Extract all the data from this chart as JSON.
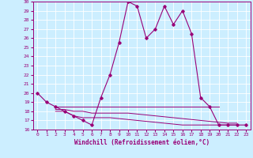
{
  "background_color": "#cceeff",
  "grid_color": "#ffffff",
  "line_color": "#990077",
  "xlabel": "Windchill (Refroidissement éolien,°C)",
  "ylim": [
    16,
    30
  ],
  "xlim": [
    -0.5,
    23.5
  ],
  "ytick_labels": [
    "16",
    "17",
    "18",
    "19",
    "20",
    "21",
    "22",
    "23",
    "24",
    "25",
    "26",
    "27",
    "28",
    "29",
    "30"
  ],
  "xtick_labels": [
    "0",
    "1",
    "2",
    "3",
    "4",
    "5",
    "6",
    "7",
    "8",
    "9",
    "10",
    "11",
    "12",
    "13",
    "14",
    "15",
    "16",
    "17",
    "18",
    "19",
    "20",
    "21",
    "22",
    "23"
  ],
  "x_main": [
    0,
    1,
    2,
    3,
    4,
    5,
    6,
    7,
    8,
    9,
    10,
    11,
    12,
    13,
    14,
    15,
    16,
    17,
    18,
    19,
    20,
    21,
    22,
    23
  ],
  "y_main": [
    20,
    19,
    18.5,
    18,
    17.5,
    17,
    16.5,
    19.5,
    22,
    25.5,
    30,
    29.5,
    26,
    27,
    29.5,
    27.5,
    29,
    26.5,
    19.5,
    18.5,
    16.5,
    16.5,
    16.5,
    16.5
  ],
  "x_flat1_start": 2,
  "y_flat1": [
    18.5,
    18.5,
    18.5,
    18.5,
    18.5,
    18.5,
    18.5,
    18.5,
    18.5,
    18.5,
    18.5,
    18.5,
    18.5,
    18.5,
    18.5,
    18.5,
    18.5,
    18.5,
    18.5
  ],
  "x_flat2_start": 2,
  "y_flat2": [
    18.2,
    18.2,
    18.0,
    18.0,
    17.8,
    17.8,
    17.8,
    17.8,
    17.8,
    17.7,
    17.6,
    17.5,
    17.4,
    17.3,
    17.2,
    17.1,
    17.0,
    16.9,
    16.8,
    16.7,
    16.7
  ],
  "x_flat3_start": 2,
  "y_flat3": [
    18.0,
    18.0,
    17.5,
    17.3,
    17.3,
    17.3,
    17.3,
    17.2,
    17.1,
    17.0,
    16.9,
    16.8,
    16.7,
    16.6,
    16.5,
    16.5,
    16.5,
    16.5,
    16.5,
    16.5,
    16.5
  ]
}
